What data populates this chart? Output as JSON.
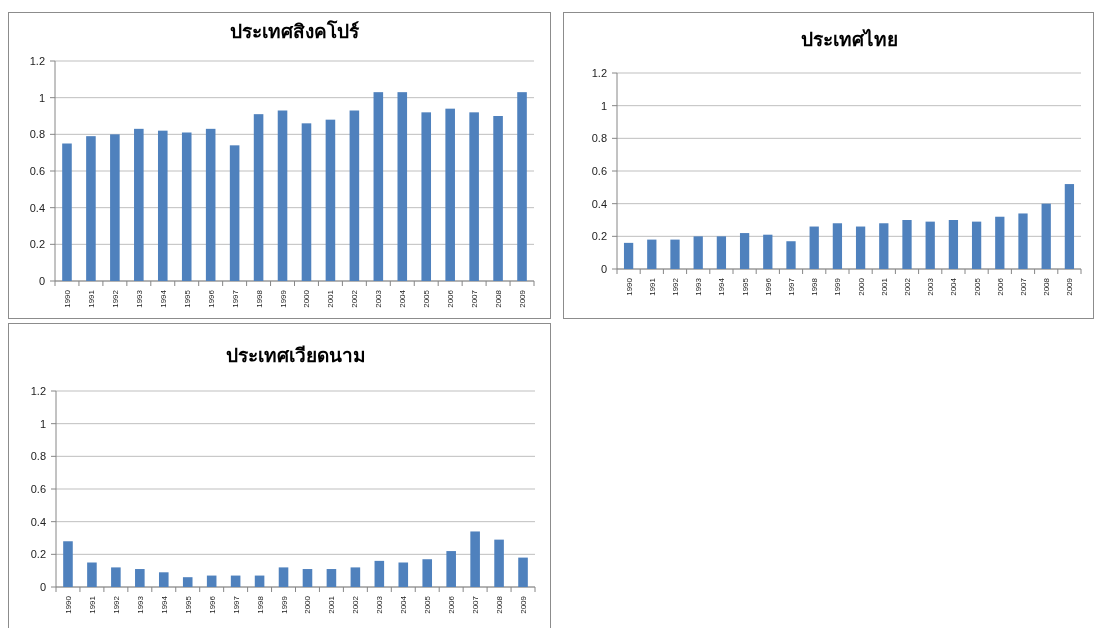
{
  "chart_data": [
    {
      "type": "bar",
      "title": "ประเทศสิงคโปร์",
      "categories": [
        "1990",
        "1991",
        "1992",
        "1993",
        "1994",
        "1995",
        "1996",
        "1997",
        "1998",
        "1999",
        "2000",
        "2001",
        "2002",
        "2003",
        "2004",
        "2005",
        "2006",
        "2007",
        "2008",
        "2009"
      ],
      "values": [
        0.75,
        0.79,
        0.8,
        0.83,
        0.82,
        0.81,
        0.83,
        0.74,
        0.91,
        0.93,
        0.86,
        0.88,
        0.93,
        1.03,
        1.03,
        0.92,
        0.94,
        0.92,
        0.9,
        1.03
      ],
      "color": "#4f81bd",
      "ylim": [
        0,
        1.2
      ],
      "yticks": [
        0,
        0.2,
        0.4,
        0.6,
        0.8,
        1,
        1.2
      ],
      "grid": "y"
    },
    {
      "type": "bar",
      "title": "ประเทศไทย",
      "categories": [
        "1990",
        "1991",
        "1992",
        "1993",
        "1994",
        "1995",
        "1996",
        "1997",
        "1998",
        "1999",
        "2000",
        "2001",
        "2002",
        "2003",
        "2004",
        "2005",
        "2006",
        "2007",
        "2008",
        "2009"
      ],
      "values": [
        0.16,
        0.18,
        0.18,
        0.2,
        0.2,
        0.22,
        0.21,
        0.17,
        0.26,
        0.28,
        0.26,
        0.28,
        0.3,
        0.29,
        0.3,
        0.29,
        0.32,
        0.34,
        0.4,
        0.52
      ],
      "color": "#4f81bd",
      "ylim": [
        0,
        1.2
      ],
      "yticks": [
        0,
        0.2,
        0.4,
        0.6,
        0.8,
        1,
        1.2
      ],
      "grid": "y"
    },
    {
      "type": "bar",
      "title": "ประเทศเวียดนาม",
      "categories": [
        "1990",
        "1991",
        "1992",
        "1993",
        "1994",
        "1995",
        "1996",
        "1997",
        "1998",
        "1999",
        "2000",
        "2001",
        "2002",
        "2003",
        "2004",
        "2005",
        "2006",
        "2007",
        "2008",
        "2009"
      ],
      "values": [
        0.28,
        0.15,
        0.12,
        0.11,
        0.09,
        0.06,
        0.07,
        0.07,
        0.07,
        0.12,
        0.11,
        0.11,
        0.12,
        0.16,
        0.15,
        0.17,
        0.22,
        0.34,
        0.29,
        0.18
      ],
      "color": "#4f81bd",
      "ylim": [
        0,
        1.2
      ],
      "yticks": [
        0,
        0.2,
        0.4,
        0.6,
        0.8,
        1,
        1.2
      ],
      "grid": "y"
    }
  ]
}
